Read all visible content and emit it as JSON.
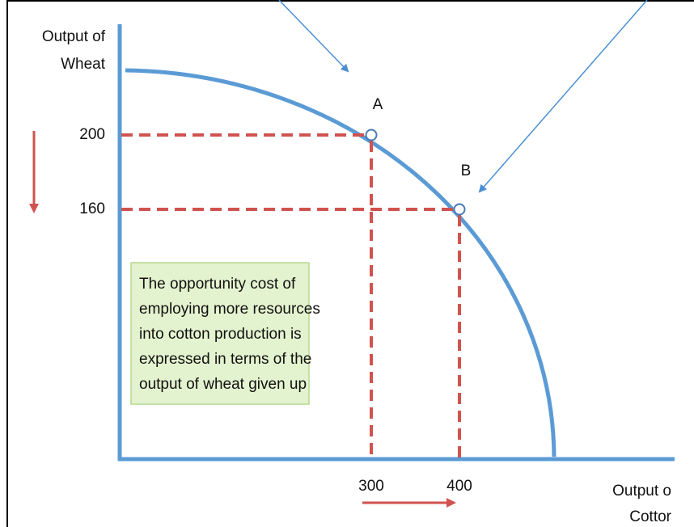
{
  "y_axis": {
    "label_lines": [
      "Output of",
      "Wheat"
    ],
    "ticks": [
      "200",
      "160"
    ]
  },
  "x_axis": {
    "label_lines": [
      "Output o",
      "Cottor"
    ],
    "ticks": [
      "300",
      "400"
    ]
  },
  "points": [
    {
      "label": "A"
    },
    {
      "label": "B"
    }
  ],
  "note": {
    "lines": [
      "The opportunity cost of",
      "employing more resources",
      "into cotton production is",
      "expressed in terms of the",
      "output of wheat given up"
    ]
  }
}
